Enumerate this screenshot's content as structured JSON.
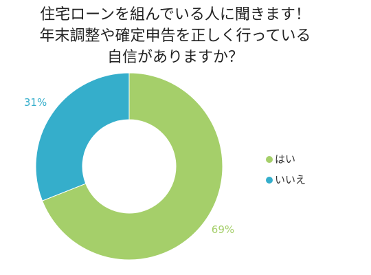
{
  "chart_data": {
    "type": "donut",
    "title": [
      "住宅ローンを組んでいる人に聞きます！",
      "年末調整や確定申告を正しく行っている",
      "自信がありますか？"
    ],
    "categories": [
      "はい",
      "いいえ"
    ],
    "values": [
      69,
      31
    ],
    "value_labels": [
      "69%",
      "31%"
    ],
    "colors": [
      "#a5cf6a",
      "#35aecb"
    ],
    "legend": "right"
  }
}
